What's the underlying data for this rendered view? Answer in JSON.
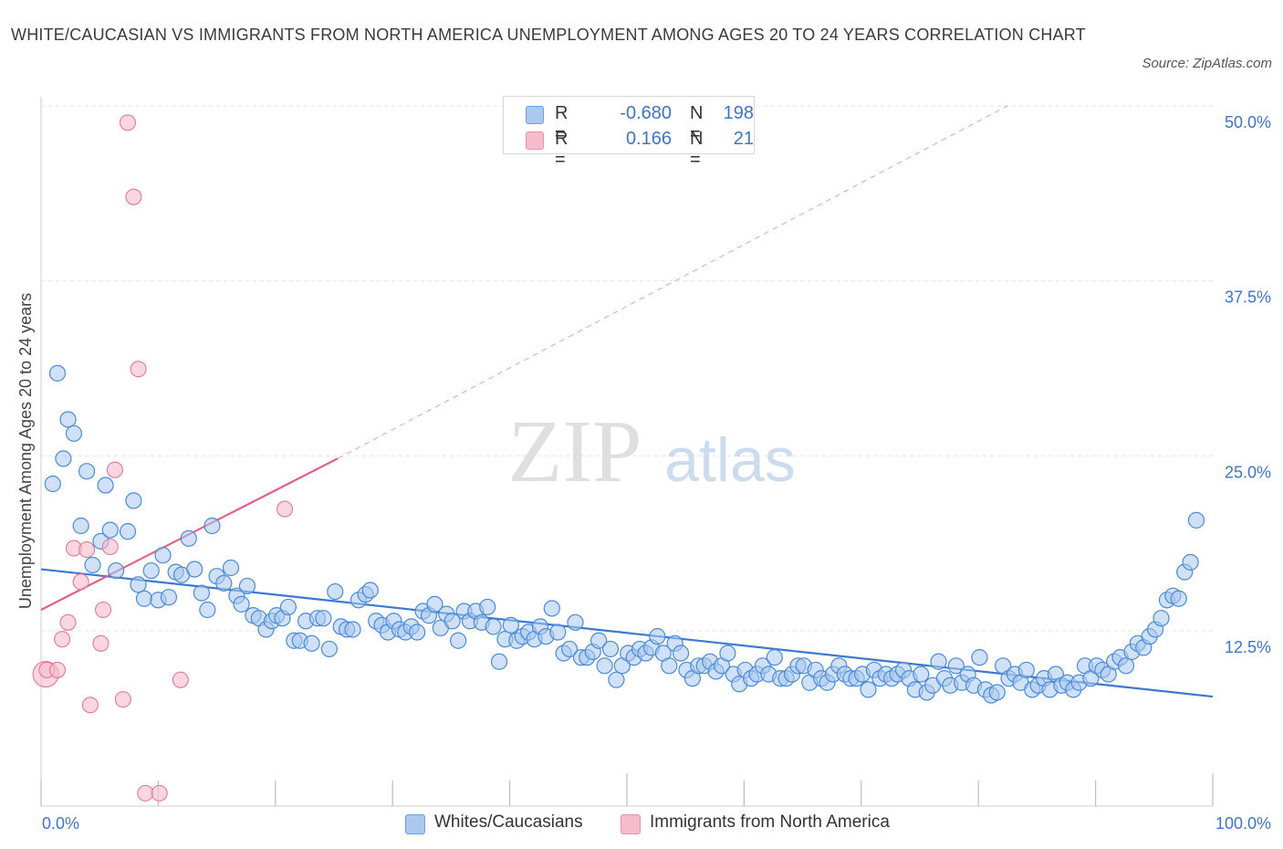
{
  "title": "WHITE/CAUCASIAN VS IMMIGRANTS FROM NORTH AMERICA UNEMPLOYMENT AMONG AGES 20 TO 24 YEARS CORRELATION CHART",
  "source": "Source: ZipAtlas.com",
  "watermark": {
    "zip": "ZIP",
    "atlas": "atlas"
  },
  "legend": {
    "rows": [
      {
        "r_label": "R =",
        "r_value": "-0.680",
        "n_label": "N =",
        "n_value": "198",
        "color": "#aac8f0"
      },
      {
        "r_label": "R =",
        "r_value": "0.166",
        "n_label": "N =",
        "n_value": "21",
        "color": "#f6bccb"
      }
    ]
  },
  "bottom_legend": [
    {
      "label": "Whites/Caucasians",
      "color": "#aac8f0"
    },
    {
      "label": "Immigrants from North America",
      "color": "#f6bccb"
    }
  ],
  "chart_data": {
    "type": "scatter",
    "title": "WHITE/CAUCASIAN VS IMMIGRANTS FROM NORTH AMERICA UNEMPLOYMENT AMONG AGES 20 TO 24 YEARS CORRELATION CHART",
    "ylabel": "Unemployment Among Ages 20 to 24 years",
    "xlabel": "",
    "xlim": [
      0,
      100
    ],
    "ylim": [
      0,
      50
    ],
    "x_tick_labels": [
      "0.0%",
      "100.0%"
    ],
    "y_tick_values": [
      12.5,
      25.0,
      37.5,
      50.0
    ],
    "y_tick_labels": [
      "12.5%",
      "25.0%",
      "37.5%",
      "50.0%"
    ],
    "grid": true,
    "legend_position": "top-center",
    "series": [
      {
        "name": "Whites/Caucasians",
        "color": "#4a8ad8",
        "fill": "#aac8f0",
        "trendline": {
          "x": [
            0,
            100
          ],
          "y": [
            16.9,
            7.8
          ],
          "style": "solid",
          "color": "#3b78d0"
        },
        "points": [
          [
            1.0,
            23.0
          ],
          [
            1.4,
            30.9
          ],
          [
            1.9,
            24.8
          ],
          [
            2.3,
            27.6
          ],
          [
            2.8,
            26.6
          ],
          [
            3.4,
            20.0
          ],
          [
            3.9,
            23.9
          ],
          [
            4.4,
            17.2
          ],
          [
            5.1,
            18.9
          ],
          [
            5.5,
            22.9
          ],
          [
            5.9,
            19.7
          ],
          [
            6.4,
            16.8
          ],
          [
            7.4,
            19.6
          ],
          [
            7.9,
            21.8
          ],
          [
            8.3,
            15.8
          ],
          [
            8.8,
            14.8
          ],
          [
            9.4,
            16.8
          ],
          [
            10.0,
            14.7
          ],
          [
            10.4,
            17.9
          ],
          [
            10.9,
            14.9
          ],
          [
            11.5,
            16.7
          ],
          [
            12.0,
            16.5
          ],
          [
            12.6,
            19.1
          ],
          [
            13.1,
            16.9
          ],
          [
            13.7,
            15.2
          ],
          [
            14.2,
            14.0
          ],
          [
            14.6,
            20.0
          ],
          [
            15.0,
            16.4
          ],
          [
            15.6,
            15.9
          ],
          [
            16.2,
            17.0
          ],
          [
            16.7,
            15.0
          ],
          [
            17.1,
            14.4
          ],
          [
            17.6,
            15.7
          ],
          [
            18.1,
            13.6
          ],
          [
            18.6,
            13.4
          ],
          [
            19.2,
            12.6
          ],
          [
            19.7,
            13.2
          ],
          [
            20.1,
            13.6
          ],
          [
            20.6,
            13.4
          ],
          [
            21.1,
            14.2
          ],
          [
            21.6,
            11.8
          ],
          [
            22.1,
            11.8
          ],
          [
            22.6,
            13.2
          ],
          [
            23.1,
            11.6
          ],
          [
            23.6,
            13.4
          ],
          [
            24.1,
            13.4
          ],
          [
            24.6,
            11.2
          ],
          [
            25.1,
            15.3
          ],
          [
            25.6,
            12.8
          ],
          [
            26.1,
            12.6
          ],
          [
            26.6,
            12.6
          ],
          [
            27.1,
            14.7
          ],
          [
            27.7,
            15.1
          ],
          [
            28.1,
            15.4
          ],
          [
            28.6,
            13.2
          ],
          [
            29.1,
            12.9
          ],
          [
            29.6,
            12.4
          ],
          [
            30.1,
            13.2
          ],
          [
            30.6,
            12.6
          ],
          [
            31.1,
            12.4
          ],
          [
            31.6,
            12.8
          ],
          [
            32.1,
            12.4
          ],
          [
            32.6,
            13.9
          ],
          [
            33.1,
            13.6
          ],
          [
            33.6,
            14.4
          ],
          [
            34.1,
            12.7
          ],
          [
            34.6,
            13.7
          ],
          [
            35.1,
            13.2
          ],
          [
            35.6,
            11.8
          ],
          [
            36.1,
            13.9
          ],
          [
            36.6,
            13.2
          ],
          [
            37.1,
            13.9
          ],
          [
            37.6,
            13.1
          ],
          [
            38.1,
            14.2
          ],
          [
            38.6,
            12.8
          ],
          [
            39.1,
            10.3
          ],
          [
            39.6,
            11.9
          ],
          [
            40.1,
            12.9
          ],
          [
            40.6,
            11.8
          ],
          [
            41.1,
            12.1
          ],
          [
            41.6,
            12.4
          ],
          [
            42.1,
            11.9
          ],
          [
            42.6,
            12.8
          ],
          [
            43.1,
            12.1
          ],
          [
            43.6,
            14.1
          ],
          [
            44.1,
            12.4
          ],
          [
            44.6,
            10.9
          ],
          [
            45.1,
            11.2
          ],
          [
            45.6,
            13.1
          ],
          [
            46.1,
            10.6
          ],
          [
            46.6,
            10.6
          ],
          [
            47.1,
            11.0
          ],
          [
            47.6,
            11.8
          ],
          [
            48.1,
            10.0
          ],
          [
            48.6,
            11.2
          ],
          [
            49.1,
            9.0
          ],
          [
            49.6,
            10.0
          ],
          [
            50.1,
            10.9
          ],
          [
            50.6,
            10.6
          ],
          [
            51.1,
            11.2
          ],
          [
            51.6,
            10.9
          ],
          [
            52.1,
            11.3
          ],
          [
            52.6,
            12.1
          ],
          [
            53.1,
            10.9
          ],
          [
            53.6,
            10.0
          ],
          [
            54.1,
            11.6
          ],
          [
            54.6,
            10.9
          ],
          [
            55.1,
            9.7
          ],
          [
            55.6,
            9.1
          ],
          [
            56.1,
            10.0
          ],
          [
            56.6,
            10.0
          ],
          [
            57.1,
            10.3
          ],
          [
            57.6,
            9.6
          ],
          [
            58.1,
            10.0
          ],
          [
            58.6,
            10.9
          ],
          [
            59.1,
            9.4
          ],
          [
            59.6,
            8.7
          ],
          [
            60.1,
            9.7
          ],
          [
            60.6,
            9.1
          ],
          [
            61.1,
            9.4
          ],
          [
            61.6,
            10.0
          ],
          [
            62.1,
            9.4
          ],
          [
            62.6,
            10.6
          ],
          [
            63.1,
            9.1
          ],
          [
            63.6,
            9.1
          ],
          [
            64.1,
            9.4
          ],
          [
            64.6,
            10.0
          ],
          [
            65.1,
            10.0
          ],
          [
            65.6,
            8.8
          ],
          [
            66.1,
            9.7
          ],
          [
            66.6,
            9.1
          ],
          [
            67.1,
            8.8
          ],
          [
            67.6,
            9.4
          ],
          [
            68.1,
            10.0
          ],
          [
            68.6,
            9.4
          ],
          [
            69.1,
            9.1
          ],
          [
            69.6,
            9.1
          ],
          [
            70.1,
            9.4
          ],
          [
            70.6,
            8.3
          ],
          [
            71.1,
            9.7
          ],
          [
            71.6,
            9.1
          ],
          [
            72.1,
            9.4
          ],
          [
            72.6,
            9.1
          ],
          [
            73.1,
            9.4
          ],
          [
            73.6,
            9.7
          ],
          [
            74.1,
            9.1
          ],
          [
            74.6,
            8.3
          ],
          [
            75.1,
            9.4
          ],
          [
            75.6,
            8.1
          ],
          [
            76.1,
            8.6
          ],
          [
            76.6,
            10.3
          ],
          [
            77.1,
            9.1
          ],
          [
            77.6,
            8.6
          ],
          [
            78.1,
            10.0
          ],
          [
            78.6,
            8.8
          ],
          [
            79.1,
            9.4
          ],
          [
            79.6,
            8.6
          ],
          [
            80.1,
            10.6
          ],
          [
            80.6,
            8.3
          ],
          [
            81.1,
            7.9
          ],
          [
            81.6,
            8.1
          ],
          [
            82.1,
            10.0
          ],
          [
            82.6,
            9.1
          ],
          [
            83.1,
            9.4
          ],
          [
            83.6,
            8.8
          ],
          [
            84.1,
            9.7
          ],
          [
            84.6,
            8.3
          ],
          [
            85.1,
            8.6
          ],
          [
            85.6,
            9.1
          ],
          [
            86.1,
            8.3
          ],
          [
            86.6,
            9.4
          ],
          [
            87.1,
            8.6
          ],
          [
            87.6,
            8.8
          ],
          [
            88.1,
            8.3
          ],
          [
            88.6,
            8.8
          ],
          [
            89.1,
            10.0
          ],
          [
            89.6,
            9.1
          ],
          [
            90.1,
            10.0
          ],
          [
            90.6,
            9.7
          ],
          [
            91.1,
            9.4
          ],
          [
            91.6,
            10.3
          ],
          [
            92.1,
            10.6
          ],
          [
            92.6,
            10.0
          ],
          [
            93.1,
            11.0
          ],
          [
            93.6,
            11.6
          ],
          [
            94.1,
            11.3
          ],
          [
            94.6,
            12.1
          ],
          [
            95.1,
            12.6
          ],
          [
            95.6,
            13.4
          ],
          [
            96.1,
            14.7
          ],
          [
            96.6,
            15.0
          ],
          [
            97.1,
            14.8
          ],
          [
            97.6,
            16.7
          ],
          [
            98.1,
            17.4
          ],
          [
            98.6,
            20.4
          ]
        ]
      },
      {
        "name": "Immigrants from North America",
        "color": "#e07a98",
        "fill": "#f6bccb",
        "trendline": {
          "x": [
            0,
            25.3
          ],
          "y": [
            14.0,
            24.8
          ],
          "extend_to": [
            100,
            50.0
          ],
          "style": "solid-then-dashed",
          "color": "#e06088"
        },
        "points": [
          [
            0.4,
            9.4
          ],
          [
            0.5,
            9.7
          ],
          [
            1.4,
            9.7
          ],
          [
            1.8,
            11.9
          ],
          [
            2.3,
            13.1
          ],
          [
            2.8,
            18.4
          ],
          [
            3.4,
            16.0
          ],
          [
            3.9,
            18.3
          ],
          [
            4.2,
            7.2
          ],
          [
            5.1,
            11.6
          ],
          [
            5.3,
            14.0
          ],
          [
            5.9,
            18.5
          ],
          [
            6.3,
            24.0
          ],
          [
            7.0,
            7.6
          ],
          [
            7.4,
            48.8
          ],
          [
            7.9,
            43.5
          ],
          [
            8.3,
            31.2
          ],
          [
            8.9,
            0.9
          ],
          [
            10.1,
            0.9
          ],
          [
            11.9,
            9.0
          ],
          [
            20.8,
            21.2
          ]
        ]
      }
    ]
  }
}
